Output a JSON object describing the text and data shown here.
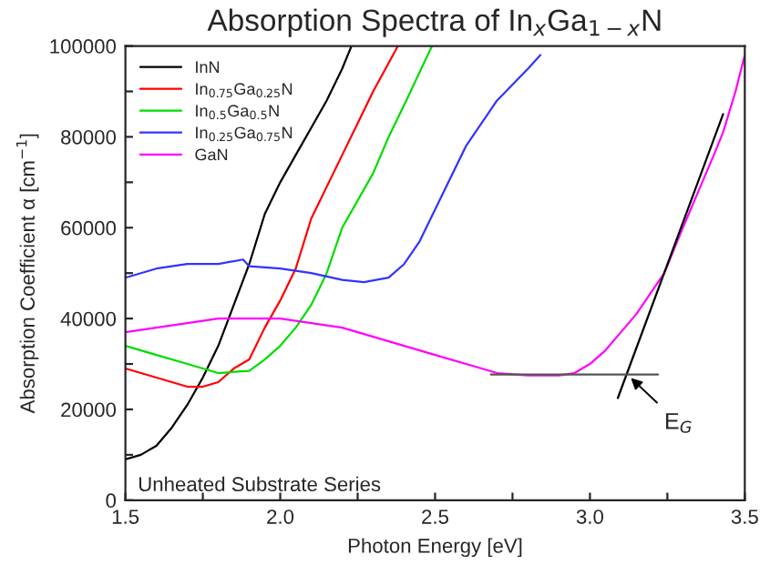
{
  "chart_data": {
    "type": "line",
    "title": "Absorption Spectra of In$_{x}$Ga$_{1−x}$N",
    "xlabel": "Photon Energy [eV]",
    "ylabel": "Absorption Coefficient α [cm$^{−1}$]",
    "xlim": [
      1.5,
      3.5
    ],
    "ylim": [
      0,
      100000
    ],
    "xticks": [
      1.5,
      {
        "value": 1.75,
        "label": null
      },
      {
        "value": 2,
        "label": "2.0"
      },
      {
        "value": 2.25,
        "label": null
      },
      2.5,
      {
        "value": 2.75,
        "label": null
      },
      {
        "value": 3,
        "label": "3.0"
      },
      {
        "value": 3.25,
        "label": null
      },
      3.5
    ],
    "yticks": [
      0,
      {
        "value": 10000,
        "label": null
      },
      20000,
      {
        "value": 30000,
        "label": null
      },
      40000,
      {
        "value": 50000,
        "label": null
      },
      60000,
      {
        "value": 70000,
        "label": null
      },
      80000,
      {
        "value": 90000,
        "label": null
      },
      100000
    ],
    "grid": false,
    "legend": "top left",
    "marker": "none",
    "line_style": "solid",
    "series": [
      {
        "name": "InN",
        "color": "#000000",
        "x": [
          1.5,
          1.55,
          1.6,
          1.65,
          1.7,
          1.75,
          1.8,
          1.85,
          1.9,
          1.95,
          2.0,
          2.05,
          2.1,
          2.15,
          2.2,
          2.23
        ],
        "values": [
          9000,
          10000,
          12000,
          16000,
          21000,
          27000,
          34000,
          43000,
          52000,
          63000,
          70000,
          76000,
          82000,
          88000,
          95000,
          100000
        ]
      },
      {
        "name": "In$_{0.75}$Ga$_{0.25}$N",
        "color": "#ff0000",
        "x": [
          1.5,
          1.6,
          1.7,
          1.75,
          1.8,
          1.85,
          1.9,
          1.95,
          2.0,
          2.05,
          2.1,
          2.2,
          2.25,
          2.3,
          2.38
        ],
        "values": [
          29000,
          27000,
          25000,
          25000,
          26000,
          29000,
          31000,
          38000,
          44000,
          51000,
          62000,
          76000,
          83000,
          90000,
          100000
        ]
      },
      {
        "name": "In$_{0.5}$Ga$_{0.5}$N",
        "color": "#00dd00",
        "x": [
          1.5,
          1.6,
          1.7,
          1.8,
          1.9,
          1.95,
          2.0,
          2.05,
          2.1,
          2.15,
          2.2,
          2.3,
          2.35,
          2.4,
          2.49
        ],
        "values": [
          34000,
          32000,
          30000,
          28000,
          28500,
          31000,
          34000,
          38000,
          43000,
          50000,
          60000,
          72000,
          80000,
          87000,
          100000
        ]
      },
      {
        "name": "In$_{0.25}$Ga$_{0.75}$N",
        "color": "#3333ff",
        "x": [
          1.5,
          1.6,
          1.7,
          1.8,
          1.88,
          1.9,
          2.0,
          2.1,
          2.2,
          2.27,
          2.35,
          2.4,
          2.45,
          2.5,
          2.6,
          2.7,
          2.8,
          2.84
        ],
        "values": [
          49000,
          51000,
          52000,
          52000,
          53000,
          51500,
          51000,
          50000,
          48500,
          48000,
          49000,
          52000,
          57000,
          64000,
          78000,
          88000,
          95000,
          98000
        ]
      },
      {
        "name": "GaN",
        "color": "#ff00ff",
        "x": [
          1.5,
          1.6,
          1.7,
          1.8,
          1.9,
          2.0,
          2.1,
          2.2,
          2.3,
          2.4,
          2.5,
          2.6,
          2.7,
          2.8,
          2.9,
          2.95,
          3.0,
          3.05,
          3.1,
          3.15,
          3.2,
          3.24,
          3.3,
          3.35,
          3.4,
          3.43,
          3.47,
          3.5
        ],
        "values": [
          37000,
          38000,
          39000,
          40000,
          40000,
          40000,
          39000,
          38000,
          36000,
          34000,
          32000,
          30000,
          28000,
          27500,
          27500,
          28000,
          30000,
          33000,
          37000,
          41000,
          46000,
          50000,
          60000,
          68000,
          76000,
          81000,
          90000,
          98000
        ]
      },
      {
        "color": "#000000",
        "x": [
          3.09,
          3.43
        ],
        "values": [
          22500,
          85000
        ]
      },
      {
        "color": "#555555",
        "x": [
          2.68,
          3.22
        ],
        "values": [
          27700,
          27700
        ]
      }
    ],
    "annotations": [
      {
        "text": "E$_{G}$",
        "x": 3.12,
        "y": 27700
      },
      "Unheated Substrate Series"
    ]
  }
}
